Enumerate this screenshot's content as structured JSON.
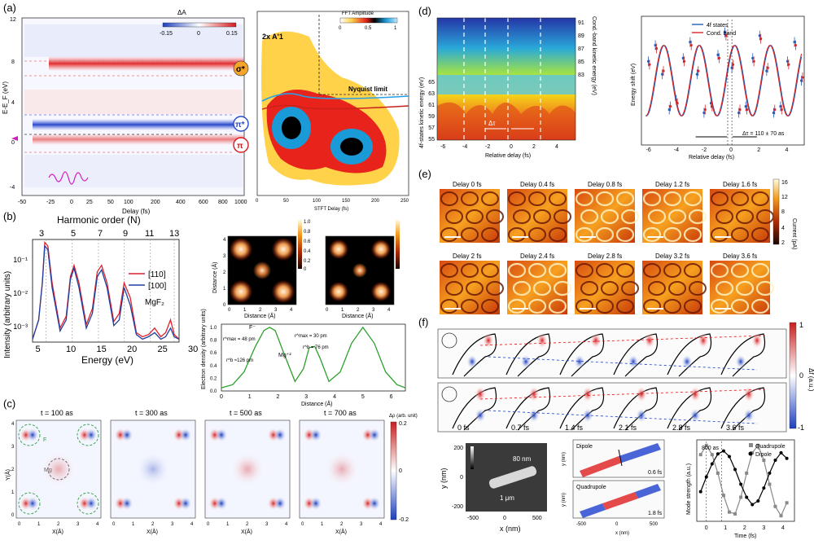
{
  "panels": {
    "a": {
      "label": "(a)",
      "cb_title": "ΔA",
      "cb_ticks": [
        "-0.15",
        "0",
        "0.15"
      ],
      "y_ticks": [
        "12",
        "8",
        "4",
        "0",
        "-4"
      ],
      "y_label": "E-E_F (eV)",
      "x_ticks": [
        "-50",
        "-25",
        "0",
        "25",
        "50",
        "100",
        "200",
        "400",
        "600",
        "800",
        "1000"
      ],
      "x_label": "Delay (fs)",
      "badges": [
        "σ*",
        "π*",
        "π"
      ],
      "fft_title": "FFT Amplitude",
      "fft_ticks": [
        "0",
        "0.5",
        "1"
      ],
      "mode_label": "2x A'1",
      "nyquist": "Nyquist limit",
      "fft_x_ticks": [
        "0",
        "50",
        "100",
        "150",
        "200",
        "250"
      ],
      "fft_x_label": "STFT Delay (fs)"
    },
    "b": {
      "label": "(b)",
      "top_label": "Harmonic order (N)",
      "top_ticks": [
        "3",
        "5",
        "7",
        "9",
        "11",
        "13"
      ],
      "y_label": "Intensity (arbitrary units)",
      "y_ticks": [
        "10⁻¹",
        "10⁻²",
        "10⁻³"
      ],
      "x_ticks": [
        "5",
        "10",
        "15",
        "20",
        "25",
        "30"
      ],
      "x_label": "Energy (eV)",
      "legend": [
        "[110]",
        "[100]"
      ],
      "material": "MgF₂",
      "map_y_label": "Distance (Å)",
      "map_x_label": "Distance (Å)",
      "map_ticks": [
        "0",
        "1",
        "2",
        "3",
        "4"
      ],
      "cb_ticks": [
        "1.0",
        "0.8",
        "0.6",
        "0.4",
        "0.2",
        "0"
      ],
      "dens_y_label": "Electron density (arbitrary units)",
      "dens_y_ticks": [
        "1.0",
        "0.8",
        "0.6",
        "0.4",
        "0.2",
        "0.0"
      ],
      "dens_x_ticks": [
        "0",
        "1",
        "2",
        "3",
        "4",
        "5",
        "6"
      ],
      "dens_x_label": "Distance (Å)",
      "ann_f": "F⁻",
      "ann_mg": "Mg⁺²",
      "ann_rmax_f": "r^max = 48 pm",
      "ann_rmax_mg": "r^max = 30 pm",
      "ann_rb_f": "r^b ≈126 pm",
      "ann_rb_mg": "r^b = 76 pm"
    },
    "c": {
      "label": "(c)",
      "titles": [
        "t = 100 as",
        "t = 300 as",
        "t = 500 as",
        "t = 700 as"
      ],
      "ticks": [
        "0",
        "1",
        "2",
        "3",
        "4"
      ],
      "x_label": "X(Å)",
      "y_label": "Y(Å)",
      "cb_title": "Δρ (arb. unit)",
      "cb_ticks": [
        "0.2",
        "0",
        "-0.2"
      ],
      "atom_f": "F",
      "atom_mg": "Mg"
    },
    "d": {
      "label": "(d)",
      "y_left_label": "4f-states kinetic energy (eV)",
      "y_left_ticks": [
        "65",
        "63",
        "61",
        "59",
        "57",
        "55"
      ],
      "y_right_label": "Cond.-band kinetic energy (eV)",
      "y_right_ticks": [
        "91",
        "89",
        "87",
        "85",
        "83"
      ],
      "x_ticks": [
        "-6",
        "-4",
        "-2",
        "0",
        "2",
        "4"
      ],
      "x_label": "Relative delay (fs)",
      "dt": "Δτ",
      "shift_y_label": "Energy shift (eV)",
      "shift_x_ticks": [
        "-6",
        "-4",
        "-2",
        "0",
        "2",
        "4"
      ],
      "shift_x_label": "Relative delay (fs)",
      "legend": [
        "4f states",
        "Cond. band"
      ],
      "annotation": "Δτ = 110 ± 70 as"
    },
    "e": {
      "label": "(e)",
      "tiles": [
        "Delay 0 fs",
        "Delay 0.4 fs",
        "Delay 0.8 fs",
        "Delay 1.2 fs",
        "Delay 1.6 fs",
        "Delay 2 fs",
        "Delay 2.4 fs",
        "Delay 2.8 fs",
        "Delay 3.2 fs",
        "Delay 3.6 fs"
      ],
      "cb_title": "Current (pA)",
      "cb_ticks": [
        "16",
        "12",
        "8",
        "4",
        "2"
      ]
    },
    "f": {
      "label": "(f)",
      "times": [
        "0 fs",
        "0.7 fs",
        "1.4 fs",
        "2.1 fs",
        "2.8 fs",
        "3.6 fs"
      ],
      "cb_title": "Δf (a.u.)",
      "cb_ticks": [
        "1",
        "0",
        "-1"
      ],
      "sem_y_label": "y (nm)",
      "sem_y_ticks": [
        "200",
        "0",
        "-200"
      ],
      "sem_x_ticks": [
        "-500",
        "0",
        "500"
      ],
      "sem_x_label": "x (nm)",
      "sem_width": "80 nm",
      "sem_length": "1 μm",
      "dipole_label": "Dipole",
      "dipole_time": "0.6 fs",
      "quad_label": "Quadrupole",
      "quad_time": "1.8 fs",
      "map_y_label": "y (nm)",
      "map_x_ticks": [
        "-500",
        "0",
        "500"
      ],
      "map_x_label": "x (nm)",
      "mode_y_label": "Mode strength (a.u.)",
      "mode_x_ticks": [
        "0",
        "1",
        "2",
        "3",
        "4"
      ],
      "mode_x_label": "Time (fs)",
      "mode_ann": "800 as",
      "mode_legend": [
        "Quadrupole",
        "Dipole"
      ]
    }
  },
  "chart_data": [
    {
      "type": "line",
      "panel": "b",
      "xlabel": "Energy (eV)",
      "ylabel": "Intensity (arbitrary units)",
      "yscale": "log",
      "xlim": [
        4,
        28
      ],
      "ylim": [
        0.0005,
        0.3
      ],
      "series": [
        {
          "name": "[110]",
          "color": "#e0202a",
          "x": [
            4,
            5,
            5.6,
            6.0,
            6.5,
            7.2,
            8.5,
            9.5,
            10.2,
            10.8,
            11.6,
            12.8,
            13.8,
            14.6,
            15.3,
            16.2,
            17.3,
            18.2,
            19.0,
            20.0,
            21.0,
            22.0,
            23.0,
            24.0,
            25.0,
            25.8,
            26.6,
            27.2,
            28
          ],
          "y": [
            0.0006,
            0.002,
            0.02,
            0.25,
            0.2,
            0.02,
            0.0012,
            0.0025,
            0.03,
            0.06,
            0.02,
            0.0015,
            0.004,
            0.04,
            0.06,
            0.02,
            0.0018,
            0.003,
            0.02,
            0.008,
            0.0009,
            0.0007,
            0.0008,
            0.0012,
            0.0007,
            0.0009,
            0.002,
            0.0008,
            0.0006
          ]
        },
        {
          "name": "[100]",
          "color": "#2040a0",
          "x": [
            4,
            5,
            5.6,
            6.0,
            6.5,
            7.2,
            8.5,
            9.5,
            10.2,
            10.8,
            11.6,
            12.8,
            13.8,
            14.6,
            15.3,
            16.2,
            17.3,
            18.2,
            19.0,
            20.0,
            21.0,
            22.0,
            23.0,
            24.0,
            25.0,
            25.8,
            26.6,
            27.2,
            28
          ],
          "y": [
            0.0006,
            0.002,
            0.02,
            0.2,
            0.16,
            0.015,
            0.001,
            0.002,
            0.025,
            0.05,
            0.015,
            0.0012,
            0.003,
            0.03,
            0.045,
            0.015,
            0.0014,
            0.002,
            0.015,
            0.005,
            0.0008,
            0.0006,
            0.0007,
            0.0009,
            0.0006,
            0.0007,
            0.0012,
            0.0007,
            0.0006
          ]
        }
      ]
    },
    {
      "type": "line",
      "panel": "b-density",
      "xlabel": "Distance (Å)",
      "ylabel": "Electron density (arbitrary units)",
      "xlim": [
        0,
        6.5
      ],
      "ylim": [
        0,
        1.05
      ],
      "series": [
        {
          "color": "#2ca02c",
          "x": [
            0,
            0.4,
            0.8,
            1.2,
            1.5,
            1.7,
            1.9,
            2.2,
            2.6,
            2.9,
            3.1,
            3.3,
            3.5,
            3.8,
            4.2,
            4.6,
            5.0,
            5.4,
            5.8,
            6.2,
            6.5
          ],
          "y": [
            0.05,
            0.1,
            0.3,
            0.7,
            0.95,
            1.0,
            0.95,
            0.6,
            0.15,
            0.35,
            0.68,
            0.7,
            0.5,
            0.15,
            0.3,
            0.75,
            1.0,
            0.75,
            0.3,
            0.1,
            0.05
          ]
        }
      ]
    },
    {
      "type": "scatter",
      "panel": "d-shift",
      "xlabel": "Relative delay (fs)",
      "ylabel": "Energy shift (eV)",
      "xlim": [
        -6.5,
        5.2
      ],
      "ylim": [
        -1,
        1
      ],
      "series": [
        {
          "name": "4f states",
          "color": "#1f5fbf",
          "x": [
            -6,
            -5.5,
            -5,
            -4.5,
            -4,
            -3.5,
            -3,
            -2.5,
            -2,
            -1.5,
            -1,
            -0.5,
            0,
            0.5,
            1,
            1.5,
            2,
            2.5,
            3,
            3.5,
            4,
            4.5,
            5
          ],
          "y": [
            0.3,
            0.55,
            0.1,
            -0.45,
            -0.3,
            0.35,
            0.6,
            0.1,
            -0.5,
            -0.35,
            0.4,
            0.75,
            0.2,
            -0.5,
            -0.4,
            0.35,
            0.7,
            0.15,
            -0.5,
            -0.4,
            0.3,
            0.6,
            0.0
          ]
        },
        {
          "name": "Cond. band",
          "color": "#d62728",
          "x": [
            -6,
            -5.5,
            -5,
            -4.5,
            -4,
            -3.5,
            -3,
            -2.5,
            -2,
            -1.5,
            -1,
            -0.5,
            0,
            0.5,
            1,
            1.5,
            2,
            2.5,
            3,
            3.5,
            4,
            4.5,
            5
          ],
          "y": [
            0.25,
            0.5,
            0.15,
            -0.4,
            -0.35,
            0.3,
            0.55,
            0.15,
            -0.45,
            -0.4,
            0.35,
            0.7,
            0.25,
            -0.45,
            -0.45,
            0.3,
            0.65,
            0.2,
            -0.45,
            -0.45,
            0.25,
            0.55,
            0.05
          ]
        }
      ]
    },
    {
      "type": "line",
      "panel": "f-modes",
      "xlabel": "Time (fs)",
      "ylabel": "Mode strength (a.u.)",
      "xlim": [
        -0.5,
        4.6
      ],
      "ylim": [
        -1.1,
        1.1
      ],
      "series": [
        {
          "name": "Quadrupole",
          "color": "#888888",
          "x": [
            -0.3,
            0,
            0.3,
            0.6,
            0.9,
            1.2,
            1.5,
            1.8,
            2.1,
            2.4,
            2.7,
            3.0,
            3.3,
            3.6,
            3.9,
            4.2
          ],
          "y": [
            0.7,
            0.95,
            0.7,
            0.2,
            -0.4,
            -0.85,
            -0.9,
            -0.45,
            0.2,
            0.75,
            0.95,
            0.55,
            -0.1,
            -0.7,
            -0.95,
            -0.6
          ]
        },
        {
          "name": "Dipole",
          "color": "#000000",
          "x": [
            -0.3,
            0,
            0.3,
            0.6,
            0.9,
            1.2,
            1.5,
            1.8,
            2.1,
            2.4,
            2.7,
            3.0,
            3.3,
            3.6,
            3.9,
            4.2
          ],
          "y": [
            -0.3,
            0.1,
            0.45,
            0.72,
            0.8,
            0.65,
            0.3,
            -0.1,
            -0.45,
            -0.65,
            -0.55,
            -0.2,
            0.2,
            0.55,
            0.75,
            0.6
          ]
        }
      ]
    }
  ]
}
